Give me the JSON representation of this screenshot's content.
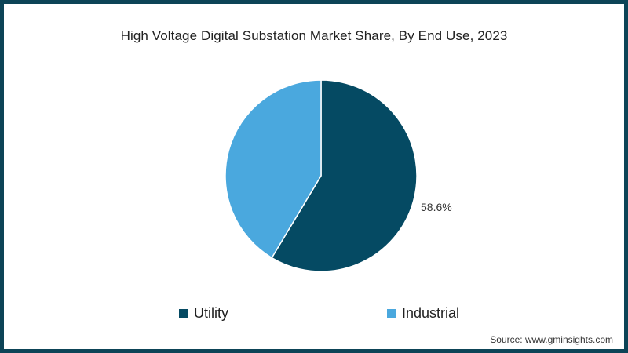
{
  "chart_data": {
    "type": "pie",
    "title": "High Voltage Digital Substation Market Share, By End Use, 2023",
    "categories": [
      "Utility",
      "Industrial"
    ],
    "values": [
      58.6,
      41.4
    ],
    "colors": [
      "#054a63",
      "#4aa8de"
    ],
    "data_labels": [
      "58.6%",
      ""
    ],
    "legend_position": "bottom",
    "start_angle_deg": 0,
    "direction": "clockwise"
  },
  "title": "High Voltage Digital Substation Market Share, By End Use, 2023",
  "labels": {
    "utility_value": "58.6%"
  },
  "legend": {
    "items": [
      {
        "label": "Utility",
        "color": "#054a63"
      },
      {
        "label": "Industrial",
        "color": "#4aa8de"
      }
    ]
  },
  "source": "Source: www.gminsights.com",
  "colors": {
    "border": "#0d4457"
  }
}
